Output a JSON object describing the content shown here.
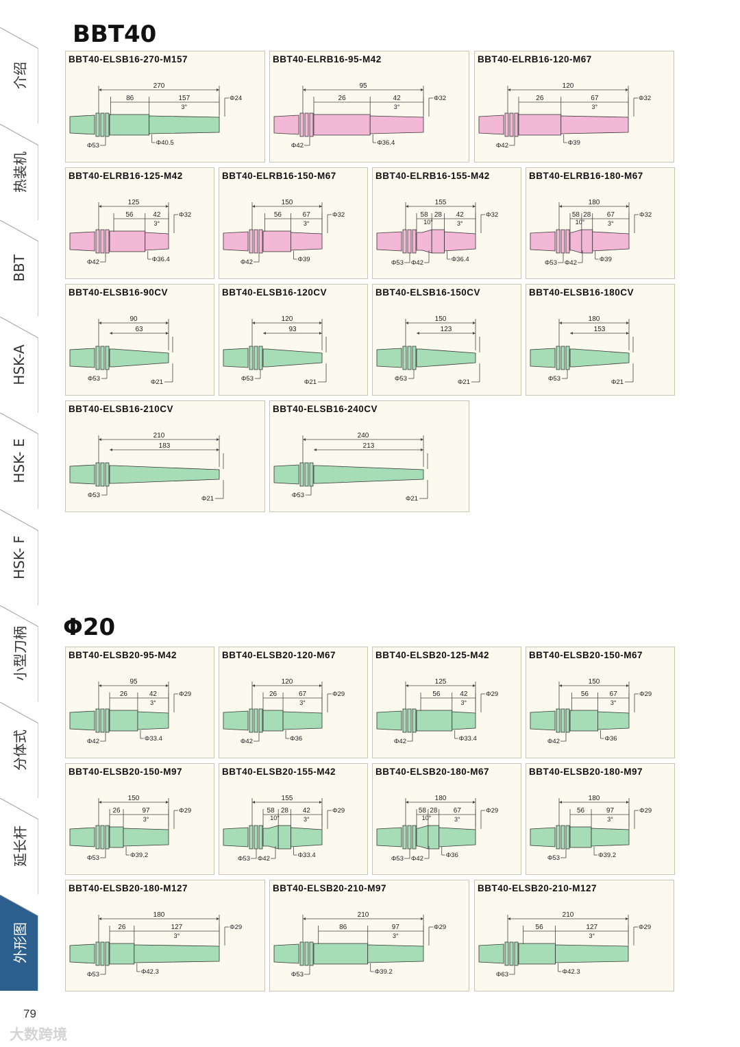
{
  "sidebar": {
    "tabs": [
      {
        "label": "介绍",
        "active": false
      },
      {
        "label": "热装机",
        "active": false
      },
      {
        "label": "BBT",
        "active": false
      },
      {
        "label": "HSK-A",
        "active": false
      },
      {
        "label": "HSK- E",
        "active": false
      },
      {
        "label": "HSK- F",
        "active": false
      },
      {
        "label": "小型刀柄",
        "active": false
      },
      {
        "label": "分体式",
        "active": false
      },
      {
        "label": "延长杆",
        "active": false
      },
      {
        "label": "外形图",
        "active": true
      }
    ],
    "active_color": "#2c5f8e"
  },
  "sections": [
    {
      "title": "BBT40",
      "cards": [
        {
          "model": "BBT40-ELSB16-270-M157",
          "type": "M",
          "color": "green",
          "total": "270",
          "segments": [
            "86",
            "157"
          ],
          "angle": "3°",
          "tip_dia": "Φ24",
          "base_dia": [
            "Φ53"
          ],
          "mid_dia": "Φ40.5"
        },
        {
          "model": "BBT40-ELRB16-95-M42",
          "type": "M",
          "color": "pink",
          "total": "95",
          "segments": [
            "26",
            "42"
          ],
          "angle": "3°",
          "tip_dia": "Φ32",
          "base_dia": [
            "Φ42"
          ],
          "mid_dia": "Φ36.4"
        },
        {
          "model": "BBT40-ELRB16-120-M67",
          "type": "M",
          "color": "pink",
          "total": "120",
          "segments": [
            "26",
            "67"
          ],
          "angle": "3°",
          "tip_dia": "Φ32",
          "base_dia": [
            "Φ42"
          ],
          "mid_dia": "Φ39"
        },
        {
          "model": "BBT40-ELRB16-125-M42",
          "type": "M",
          "color": "pink",
          "total": "125",
          "segments": [
            "56",
            "42"
          ],
          "angle": "3°",
          "tip_dia": "Φ32",
          "base_dia": [
            "Φ42"
          ],
          "mid_dia": "Φ36.4"
        },
        {
          "model": "BBT40-ELRB16-150-M67",
          "type": "M",
          "color": "pink",
          "total": "150",
          "segments": [
            "56",
            "67"
          ],
          "angle": "3°",
          "tip_dia": "Φ32",
          "base_dia": [
            "Φ42"
          ],
          "mid_dia": "Φ39"
        },
        {
          "model": "BBT40-ELRB16-155-M42",
          "type": "M",
          "color": "pink",
          "total": "155",
          "segments": [
            "58",
            "28",
            "42"
          ],
          "angle": "3°",
          "angle2": "10°",
          "tip_dia": "Φ32",
          "base_dia": [
            "Φ53",
            "Φ42"
          ],
          "mid_dia": "Φ36.4"
        },
        {
          "model": "BBT40-ELRB16-180-M67",
          "type": "M",
          "color": "pink",
          "total": "180",
          "segments": [
            "58",
            "28",
            "67"
          ],
          "angle": "3°",
          "angle2": "10°",
          "tip_dia": "Φ32",
          "base_dia": [
            "Φ53",
            "Φ42"
          ],
          "mid_dia": "Φ39"
        },
        {
          "model": "BBT40-ELSB16-90CV",
          "type": "CV",
          "color": "green",
          "total": "90",
          "length2": "63",
          "base_dia": [
            "Φ53"
          ],
          "tip_dia": "Φ21"
        },
        {
          "model": "BBT40-ELSB16-120CV",
          "type": "CV",
          "color": "green",
          "total": "120",
          "length2": "93",
          "base_dia": [
            "Φ53"
          ],
          "tip_dia": "Φ21"
        },
        {
          "model": "BBT40-ELSB16-150CV",
          "type": "CV",
          "color": "green",
          "total": "150",
          "length2": "123",
          "base_dia": [
            "Φ53"
          ],
          "tip_dia": "Φ21"
        },
        {
          "model": "BBT40-ELSB16-180CV",
          "type": "CV",
          "color": "green",
          "total": "180",
          "length2": "153",
          "base_dia": [
            "Φ53"
          ],
          "tip_dia": "Φ21"
        },
        {
          "model": "BBT40-ELSB16-210CV",
          "type": "CV",
          "color": "green",
          "total": "210",
          "length2": "183",
          "base_dia": [
            "Φ53"
          ],
          "tip_dia": "Φ21"
        },
        {
          "model": "BBT40-ELSB16-240CV",
          "type": "CV",
          "color": "green",
          "total": "240",
          "length2": "213",
          "base_dia": [
            "Φ53"
          ],
          "tip_dia": "Φ21"
        }
      ]
    },
    {
      "title": "Φ20",
      "cards": [
        {
          "model": "BBT40-ELSB20-95-M42",
          "type": "M",
          "color": "green",
          "total": "95",
          "segments": [
            "26",
            "42"
          ],
          "angle": "3°",
          "tip_dia": "Φ29",
          "base_dia": [
            "Φ42"
          ],
          "mid_dia": "Φ33.4"
        },
        {
          "model": "BBT40-ELSB20-120-M67",
          "type": "M",
          "color": "green",
          "total": "120",
          "segments": [
            "26",
            "67"
          ],
          "angle": "3°",
          "tip_dia": "Φ29",
          "base_dia": [
            "Φ42"
          ],
          "mid_dia": "Φ36"
        },
        {
          "model": "BBT40-ELSB20-125-M42",
          "type": "M",
          "color": "green",
          "total": "125",
          "segments": [
            "56",
            "42"
          ],
          "angle": "3°",
          "tip_dia": "Φ29",
          "base_dia": [
            "Φ42"
          ],
          "mid_dia": "Φ33.4"
        },
        {
          "model": "BBT40-ELSB20-150-M67",
          "type": "M",
          "color": "green",
          "total": "150",
          "segments": [
            "56",
            "67"
          ],
          "angle": "3°",
          "tip_dia": "Φ29",
          "base_dia": [
            "Φ42"
          ],
          "mid_dia": "Φ36"
        },
        {
          "model": "BBT40-ELSB20-150-M97",
          "type": "M",
          "color": "green",
          "total": "150",
          "segments": [
            "26",
            "97"
          ],
          "angle": "3°",
          "tip_dia": "Φ29",
          "base_dia": [
            "Φ53"
          ],
          "mid_dia": "Φ39.2"
        },
        {
          "model": "BBT40-ELSB20-155-M42",
          "type": "M",
          "color": "green",
          "total": "155",
          "segments": [
            "58",
            "28",
            "42"
          ],
          "angle": "3°",
          "angle2": "10°",
          "tip_dia": "Φ29",
          "base_dia": [
            "Φ53",
            "Φ42"
          ],
          "mid_dia": "Φ33.4"
        },
        {
          "model": "BBT40-ELSB20-180-M67",
          "type": "M",
          "color": "green",
          "total": "180",
          "segments": [
            "58",
            "28",
            "67"
          ],
          "angle": "3°",
          "angle2": "10°",
          "tip_dia": "Φ29",
          "base_dia": [
            "Φ53",
            "Φ42"
          ],
          "mid_dia": "Φ36"
        },
        {
          "model": "BBT40-ELSB20-180-M97",
          "type": "M",
          "color": "green",
          "total": "180",
          "segments": [
            "56",
            "97"
          ],
          "angle": "3°",
          "tip_dia": "Φ29",
          "base_dia": [
            "Φ53"
          ],
          "mid_dia": "Φ39.2"
        },
        {
          "model": "BBT40-ELSB20-180-M127",
          "type": "M",
          "color": "green",
          "total": "180",
          "segments": [
            "26",
            "127"
          ],
          "angle": "3°",
          "tip_dia": "Φ29",
          "base_dia": [
            "Φ53"
          ],
          "mid_dia": "Φ42.3"
        },
        {
          "model": "BBT40-ELSB20-210-M97",
          "type": "M",
          "color": "green",
          "total": "210",
          "segments": [
            "86",
            "97"
          ],
          "angle": "3°",
          "tip_dia": "Φ29",
          "base_dia": [
            "Φ53"
          ],
          "mid_dia": "Φ39.2"
        },
        {
          "model": "BBT40-ELSB20-210-M127",
          "type": "M",
          "color": "green",
          "total": "210",
          "segments": [
            "56",
            "127"
          ],
          "angle": "3°",
          "tip_dia": "Φ29",
          "base_dia": [
            "Φ63"
          ],
          "mid_dia": "Φ42.3"
        }
      ]
    }
  ],
  "colors": {
    "green": "#a6dcb6",
    "pink": "#f3b8d6",
    "card_bg": "#fcf9ef",
    "card_border": "#c8c4b6"
  },
  "page_number": "79",
  "watermark": "大数跨境"
}
